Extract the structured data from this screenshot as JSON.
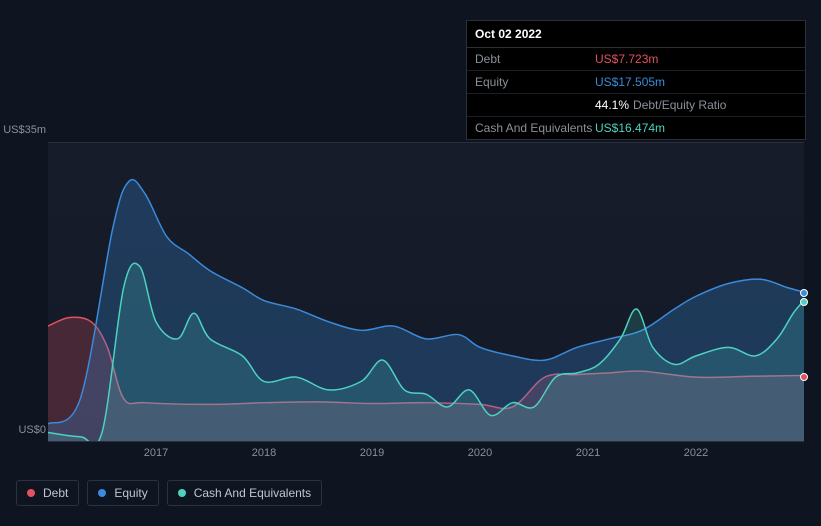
{
  "tooltip": {
    "date": "Oct 02 2022",
    "rows": [
      {
        "label": "Debt",
        "value": "US$7.723m",
        "color": "#e05260"
      },
      {
        "label": "Equity",
        "value": "US$17.505m",
        "color": "#3a8bdc"
      },
      {
        "label": "",
        "value": "44.1%",
        "suffix": "Debt/Equity Ratio",
        "color": "#ffffff"
      },
      {
        "label": "Cash And Equivalents",
        "value": "US$16.474m",
        "color": "#4dd2c0"
      }
    ]
  },
  "chart": {
    "type": "area",
    "background_color": "#0e1420",
    "plot_bg": "linear-gradient(to bottom, rgba(30,36,50,0.5), rgba(20,26,40,0.9))",
    "ylim": [
      0,
      35
    ],
    "ylabel_top": "US$35m",
    "ylabel_bottom": "US$0",
    "x_domain": [
      2016,
      2023
    ],
    "xticks": [
      2017,
      2018,
      2019,
      2020,
      2021,
      2022
    ],
    "series": [
      {
        "name": "Debt",
        "color": "#e05260",
        "fill_opacity": 0.25,
        "line_width": 1.5,
        "points": [
          [
            2016.0,
            13.5
          ],
          [
            2016.2,
            14.5
          ],
          [
            2016.4,
            14.0
          ],
          [
            2016.55,
            11.0
          ],
          [
            2016.7,
            5.0
          ],
          [
            2016.9,
            4.5
          ],
          [
            2017.5,
            4.3
          ],
          [
            2018.0,
            4.5
          ],
          [
            2018.5,
            4.6
          ],
          [
            2019.0,
            4.4
          ],
          [
            2019.5,
            4.5
          ],
          [
            2020.0,
            4.3
          ],
          [
            2020.3,
            4.0
          ],
          [
            2020.6,
            7.5
          ],
          [
            2020.9,
            7.8
          ],
          [
            2021.2,
            8.0
          ],
          [
            2021.5,
            8.2
          ],
          [
            2022.0,
            7.5
          ],
          [
            2022.5,
            7.6
          ],
          [
            2023.0,
            7.7
          ]
        ],
        "end_marker_y": 7.7
      },
      {
        "name": "Equity",
        "color": "#3a8bdc",
        "fill_opacity": 0.28,
        "line_width": 1.5,
        "points": [
          [
            2016.0,
            2.0
          ],
          [
            2016.3,
            5.0
          ],
          [
            2016.6,
            25.0
          ],
          [
            2016.75,
            30.5
          ],
          [
            2016.9,
            29.0
          ],
          [
            2017.1,
            24.0
          ],
          [
            2017.3,
            22.0
          ],
          [
            2017.5,
            20.0
          ],
          [
            2017.8,
            18.0
          ],
          [
            2018.0,
            16.5
          ],
          [
            2018.3,
            15.5
          ],
          [
            2018.6,
            14.0
          ],
          [
            2018.9,
            13.0
          ],
          [
            2019.2,
            13.5
          ],
          [
            2019.5,
            12.0
          ],
          [
            2019.8,
            12.5
          ],
          [
            2020.0,
            11.0
          ],
          [
            2020.3,
            10.0
          ],
          [
            2020.6,
            9.5
          ],
          [
            2020.9,
            11.0
          ],
          [
            2021.2,
            12.0
          ],
          [
            2021.5,
            13.0
          ],
          [
            2021.8,
            15.5
          ],
          [
            2022.0,
            17.0
          ],
          [
            2022.3,
            18.5
          ],
          [
            2022.6,
            19.0
          ],
          [
            2022.85,
            18.0
          ],
          [
            2023.0,
            17.5
          ]
        ],
        "end_marker_y": 17.5
      },
      {
        "name": "Cash And Equivalents",
        "color": "#4dd2c0",
        "fill_opacity": 0.18,
        "line_width": 1.5,
        "points": [
          [
            2016.0,
            1.0
          ],
          [
            2016.3,
            0.5
          ],
          [
            2016.5,
            1.0
          ],
          [
            2016.7,
            18.0
          ],
          [
            2016.85,
            20.5
          ],
          [
            2017.0,
            14.0
          ],
          [
            2017.2,
            12.0
          ],
          [
            2017.35,
            15.0
          ],
          [
            2017.5,
            12.0
          ],
          [
            2017.8,
            10.0
          ],
          [
            2018.0,
            7.0
          ],
          [
            2018.3,
            7.5
          ],
          [
            2018.6,
            6.0
          ],
          [
            2018.9,
            7.0
          ],
          [
            2019.1,
            9.5
          ],
          [
            2019.3,
            6.0
          ],
          [
            2019.5,
            5.5
          ],
          [
            2019.7,
            4.0
          ],
          [
            2019.9,
            6.0
          ],
          [
            2020.1,
            3.0
          ],
          [
            2020.3,
            4.5
          ],
          [
            2020.5,
            4.0
          ],
          [
            2020.7,
            7.5
          ],
          [
            2020.9,
            8.0
          ],
          [
            2021.1,
            9.0
          ],
          [
            2021.3,
            12.0
          ],
          [
            2021.45,
            15.5
          ],
          [
            2021.6,
            11.0
          ],
          [
            2021.8,
            9.0
          ],
          [
            2022.0,
            10.0
          ],
          [
            2022.3,
            11.0
          ],
          [
            2022.55,
            10.0
          ],
          [
            2022.75,
            12.0
          ],
          [
            2022.9,
            15.0
          ],
          [
            2023.0,
            16.5
          ]
        ],
        "end_marker_y": 16.5
      }
    ],
    "legend": [
      {
        "label": "Debt",
        "color": "#e05260"
      },
      {
        "label": "Equity",
        "color": "#3a8bdc"
      },
      {
        "label": "Cash And Equivalents",
        "color": "#4dd2c0"
      }
    ],
    "axis_label_color": "#8a909a",
    "axis_fontsize": 11,
    "legend_fontsize": 12
  }
}
